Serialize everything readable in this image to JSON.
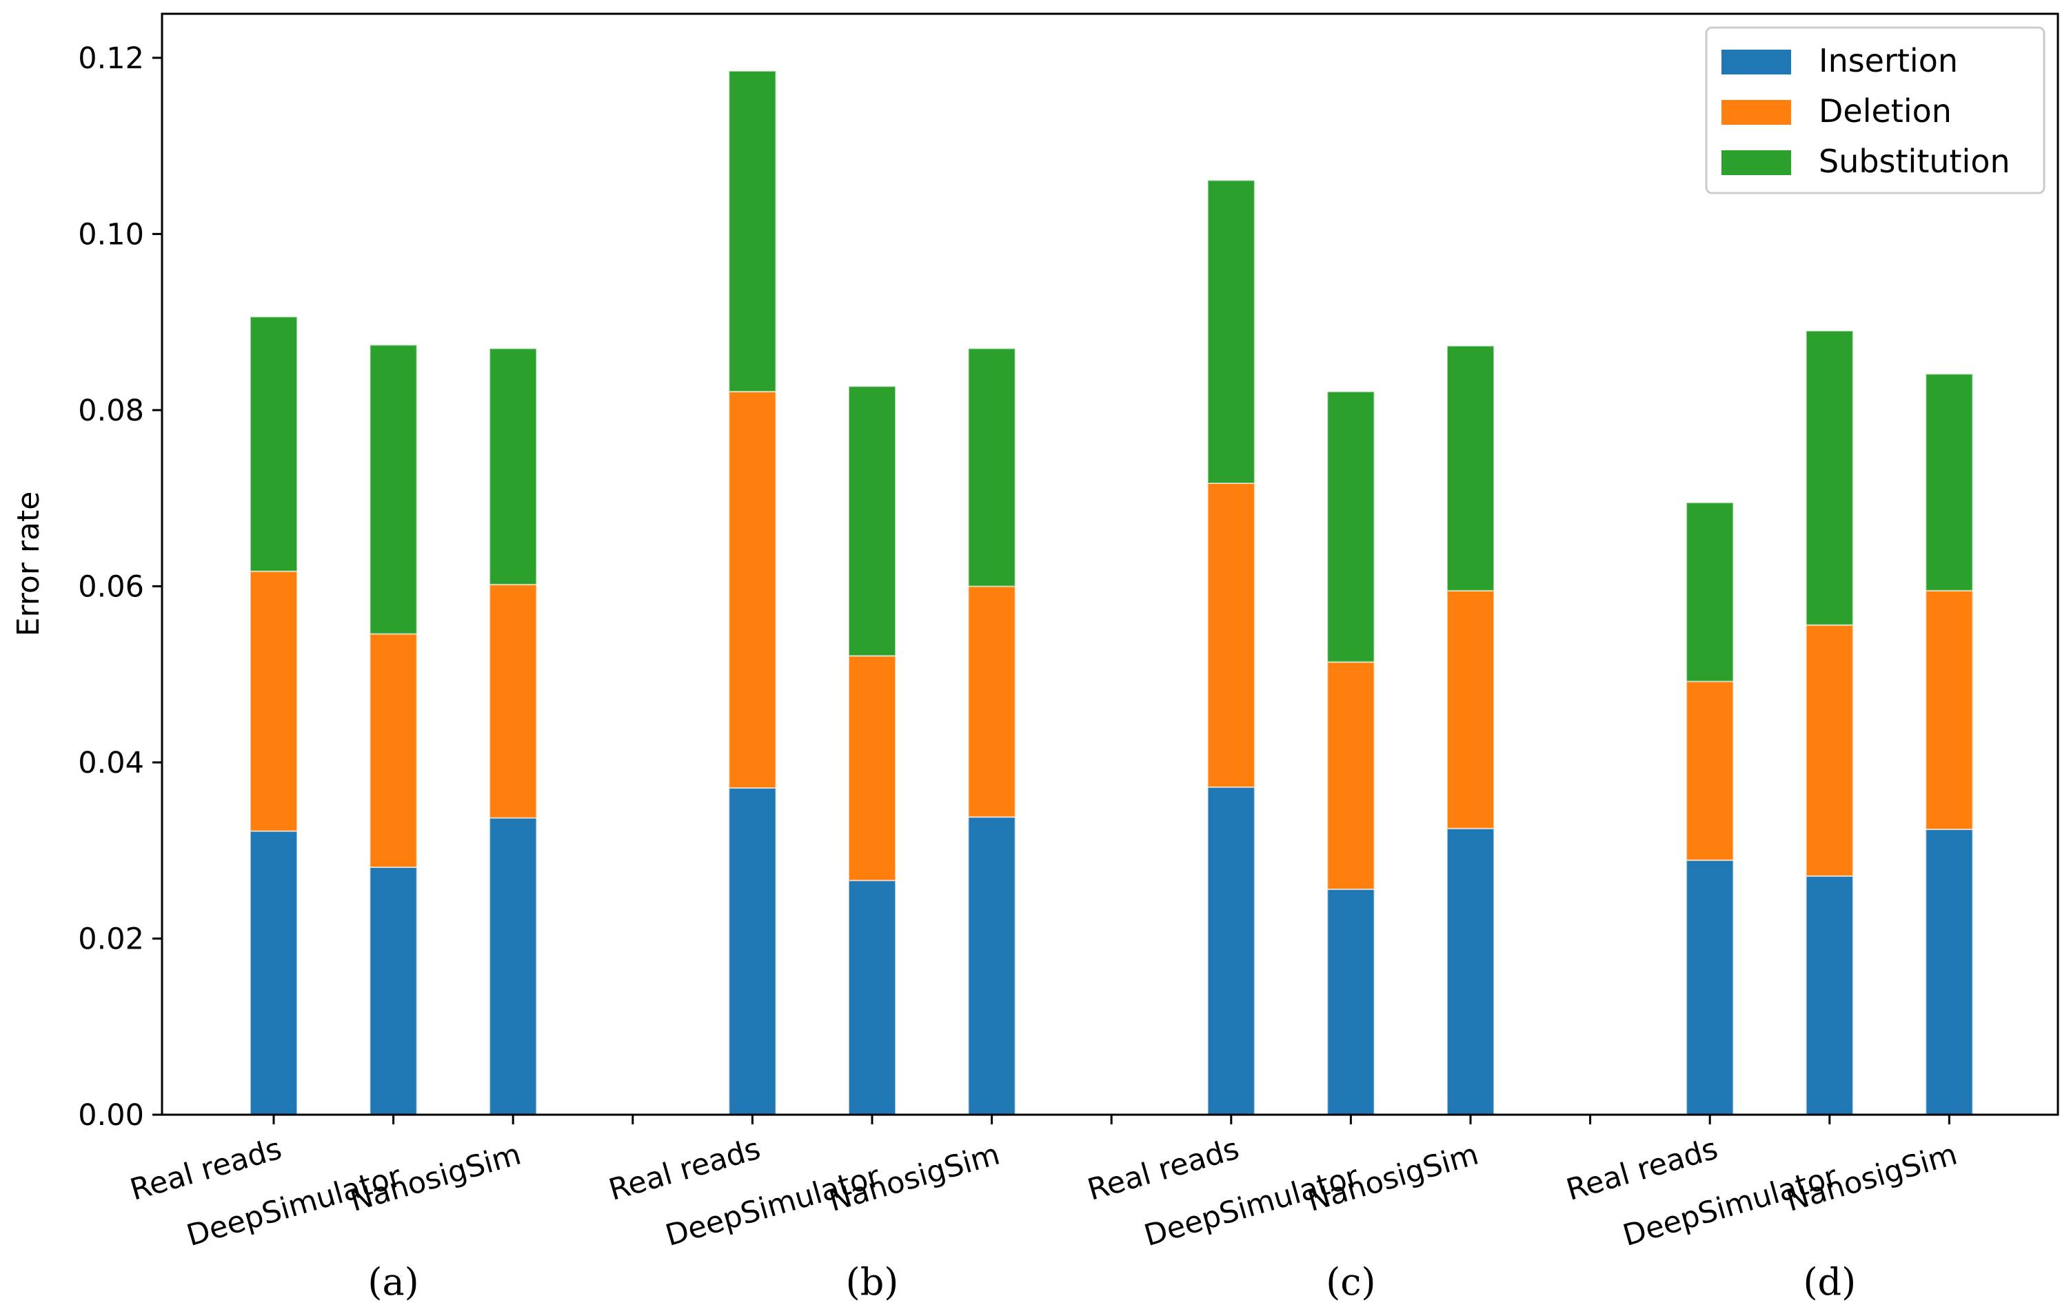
{
  "chart_data": {
    "type": "bar",
    "stacked": true,
    "title": "",
    "xlabel": "",
    "ylabel": "Error rate",
    "ylim": [
      0,
      0.125
    ],
    "yticks": [
      "0.00",
      "0.02",
      "0.04",
      "0.06",
      "0.08",
      "0.10",
      "0.12"
    ],
    "groups": [
      "(a)",
      "(b)",
      "(c)",
      "(d)"
    ],
    "categories": [
      "Real reads",
      "DeepSimulator",
      "NanosigSim",
      "Real reads",
      "DeepSimulator",
      "NanosigSim",
      "Real reads",
      "DeepSimulator",
      "NanosigSim",
      "Real reads",
      "DeepSimulator",
      "NanosigSim"
    ],
    "series": [
      {
        "name": "Insertion",
        "color": "#1f77b4",
        "values": [
          0.0322,
          0.0281,
          0.0337,
          0.0371,
          0.0266,
          0.0338,
          0.0372,
          0.0256,
          0.0325,
          0.0289,
          0.0271,
          0.0324
        ]
      },
      {
        "name": "Deletion",
        "color": "#ff7f0e",
        "values": [
          0.0295,
          0.0265,
          0.0265,
          0.045,
          0.0255,
          0.0262,
          0.0345,
          0.0258,
          0.027,
          0.0203,
          0.0285,
          0.0271
        ]
      },
      {
        "name": "Substitution",
        "color": "#2ca02c",
        "values": [
          0.0289,
          0.0328,
          0.0268,
          0.0364,
          0.0306,
          0.027,
          0.0344,
          0.0307,
          0.0278,
          0.0203,
          0.0334,
          0.0246
        ]
      }
    ],
    "legend": {
      "position": "top-right",
      "entries": [
        "Insertion",
        "Deletion",
        "Substitution"
      ]
    },
    "grid": false
  }
}
